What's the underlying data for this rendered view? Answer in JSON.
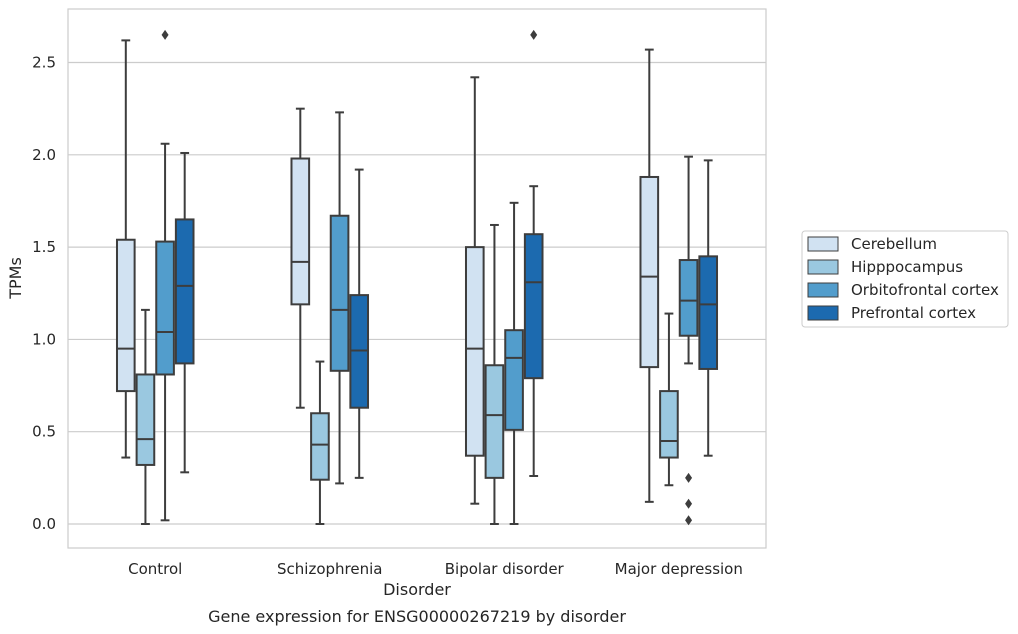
{
  "chart_data": {
    "type": "box",
    "title": "",
    "caption": "Gene expression for ENSG00000267219 by disorder",
    "xlabel": "Disorder",
    "ylabel": "TPMs",
    "categories": [
      "Control",
      "Schizophrenia",
      "Bipolar disorder",
      "Major depression"
    ],
    "ylim": [
      -0.13,
      2.79
    ],
    "yticks": [
      "0.0",
      "0.5",
      "1.0",
      "1.5",
      "2.0",
      "2.5"
    ],
    "grid": "horizontal",
    "legend_position": "right",
    "series": [
      {
        "name": "Cerebellum",
        "color": "#d1e2f2",
        "boxes": [
          {
            "whislo": 0.36,
            "q1": 0.72,
            "med": 0.95,
            "q3": 1.54,
            "whishi": 2.62,
            "fliers": []
          },
          {
            "whislo": 0.63,
            "q1": 1.19,
            "med": 1.42,
            "q3": 1.98,
            "whishi": 2.25,
            "fliers": []
          },
          {
            "whislo": 0.11,
            "q1": 0.37,
            "med": 0.95,
            "q3": 1.5,
            "whishi": 2.42,
            "fliers": []
          },
          {
            "whislo": 0.12,
            "q1": 0.85,
            "med": 1.34,
            "q3": 1.88,
            "whishi": 2.57,
            "fliers": []
          }
        ]
      },
      {
        "name": "Hipppocampus",
        "color": "#9ac8e0",
        "boxes": [
          {
            "whislo": 0.0,
            "q1": 0.32,
            "med": 0.46,
            "q3": 0.81,
            "whishi": 1.16,
            "fliers": []
          },
          {
            "whislo": 0.0,
            "q1": 0.24,
            "med": 0.43,
            "q3": 0.6,
            "whishi": 0.88,
            "fliers": []
          },
          {
            "whislo": 0.0,
            "q1": 0.25,
            "med": 0.59,
            "q3": 0.86,
            "whishi": 1.62,
            "fliers": []
          },
          {
            "whislo": 0.21,
            "q1": 0.36,
            "med": 0.45,
            "q3": 0.72,
            "whishi": 1.14,
            "fliers": []
          }
        ]
      },
      {
        "name": "Orbitofrontal cortex",
        "color": "#529dcc",
        "boxes": [
          {
            "whislo": 0.02,
            "q1": 0.81,
            "med": 1.04,
            "q3": 1.53,
            "whishi": 2.06,
            "fliers": [
              2.65
            ]
          },
          {
            "whislo": 0.22,
            "q1": 0.83,
            "med": 1.16,
            "q3": 1.67,
            "whishi": 2.23,
            "fliers": []
          },
          {
            "whislo": 0.0,
            "q1": 0.51,
            "med": 0.9,
            "q3": 1.05,
            "whishi": 1.74,
            "fliers": []
          },
          {
            "whislo": 0.87,
            "q1": 1.02,
            "med": 1.21,
            "q3": 1.43,
            "whishi": 1.99,
            "fliers": [
              0.25,
              0.11,
              0.02
            ]
          }
        ]
      },
      {
        "name": "Prefrontal cortex",
        "color": "#1c6aaf",
        "boxes": [
          {
            "whislo": 0.28,
            "q1": 0.87,
            "med": 1.29,
            "q3": 1.65,
            "whishi": 2.01,
            "fliers": []
          },
          {
            "whislo": 0.25,
            "q1": 0.63,
            "med": 0.94,
            "q3": 1.24,
            "whishi": 1.92,
            "fliers": []
          },
          {
            "whislo": 0.26,
            "q1": 0.79,
            "med": 1.31,
            "q3": 1.57,
            "whishi": 1.83,
            "fliers": [
              2.65
            ]
          },
          {
            "whislo": 0.37,
            "q1": 0.84,
            "med": 1.19,
            "q3": 1.45,
            "whishi": 1.97,
            "fliers": []
          }
        ]
      }
    ]
  }
}
